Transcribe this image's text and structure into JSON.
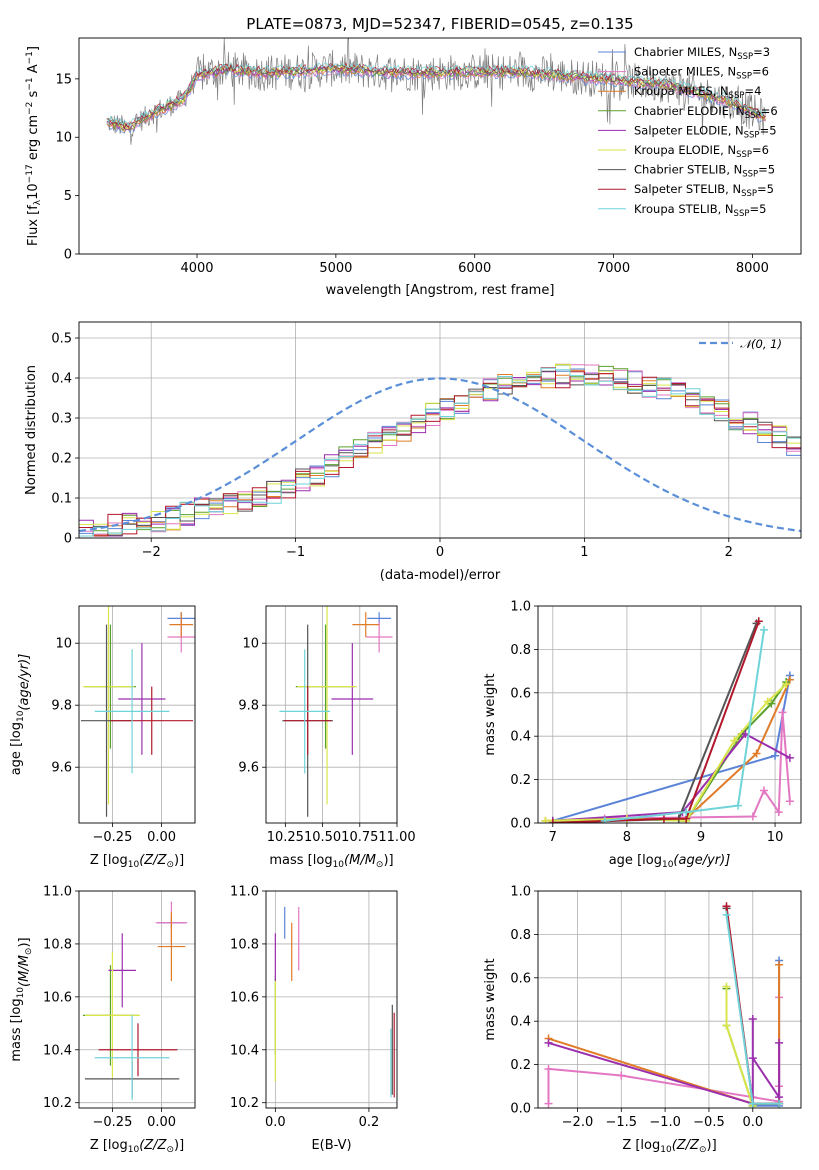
{
  "colors": {
    "Chabrier MILES": "#5b84d8",
    "Salpeter MILES": "#e377c2",
    "Kroupa MILES": "#e07b28",
    "Chabrier ELODIE": "#5aa02c",
    "Salpeter ELODIE": "#9b2fae",
    "Kroupa ELODIE": "#d9e54a",
    "Chabrier STELIB": "#555555",
    "Salpeter STELIB": "#b2182b",
    "Kroupa STELIB": "#6fd3d8",
    "data": "#7f7f7f"
  },
  "chart_data": [
    {
      "id": "spectrum",
      "type": "line",
      "title": "PLATE=0873, MJD=52347, FIBERID=0545, z=0.135",
      "xlabel": "wavelength [Angstrom, rest frame]",
      "ylabel": "Flux [f",
      "ylabel_sub": "λ",
      "ylabel_mid": "10",
      "ylabel_sup1": "−17",
      "ylabel_rest": " erg cm",
      "ylabel_sup2": "−2",
      "ylabel_s": " s",
      "ylabel_sup3": "−1",
      "ylabel_a": " A",
      "ylabel_sup4": "−1",
      "ylabel_end": "]",
      "xlim": [
        3150,
        8350
      ],
      "ylim": [
        0,
        18.5
      ],
      "xticks": [
        4000,
        5000,
        6000,
        7000,
        8000
      ],
      "yticks": [
        0,
        5,
        10,
        15
      ],
      "continuum": [
        [
          3350,
          11.3
        ],
        [
          3500,
          10.8
        ],
        [
          3700,
          12.2
        ],
        [
          3900,
          13.2
        ],
        [
          4000,
          15.3
        ],
        [
          4200,
          15.8
        ],
        [
          4500,
          15.5
        ],
        [
          4800,
          15.7
        ],
        [
          5000,
          15.9
        ],
        [
          5300,
          15.6
        ],
        [
          5600,
          15.5
        ],
        [
          6000,
          15.6
        ],
        [
          6300,
          15.6
        ],
        [
          6600,
          15.3
        ],
        [
          7000,
          14.9
        ],
        [
          7400,
          14.5
        ],
        [
          7800,
          13.2
        ],
        [
          8100,
          11.6
        ]
      ],
      "legend": [
        {
          "label": "Chabrier MILES, N",
          "sub": "SSP",
          "n": "=3",
          "key": "Chabrier MILES"
        },
        {
          "label": "Salpeter MILES, N",
          "sub": "SSP",
          "n": "=6",
          "key": "Salpeter MILES"
        },
        {
          "label": "Kroupa MILES, N",
          "sub": "SSP",
          "n": "=4",
          "key": "Kroupa MILES"
        },
        {
          "label": "Chabrier ELODIE, N",
          "sub": "SSP",
          "n": "=6",
          "key": "Chabrier ELODIE"
        },
        {
          "label": "Salpeter ELODIE, N",
          "sub": "SSP",
          "n": "=5",
          "key": "Salpeter ELODIE"
        },
        {
          "label": "Kroupa ELODIE, N",
          "sub": "SSP",
          "n": "=6",
          "key": "Kroupa ELODIE"
        },
        {
          "label": "Chabrier STELIB, N",
          "sub": "SSP",
          "n": "=5",
          "key": "Chabrier STELIB"
        },
        {
          "label": "Salpeter STELIB, N",
          "sub": "SSP",
          "n": "=5",
          "key": "Salpeter STELIB"
        },
        {
          "label": "Kroupa STELIB, N",
          "sub": "SSP",
          "n": "=5",
          "key": "Kroupa STELIB"
        }
      ]
    },
    {
      "id": "residuals",
      "type": "histogram",
      "xlabel": "(data-model)/error",
      "ylabel": "Normed distribution",
      "xlim": [
        -2.5,
        2.5
      ],
      "ylim": [
        0,
        0.54
      ],
      "xticks": [
        -2,
        -1,
        0,
        1,
        2
      ],
      "yticks": [
        0.0,
        0.1,
        0.2,
        0.3,
        0.4,
        0.5
      ],
      "bin_width": 0.1,
      "legend_label": "𝒩(0, 1)",
      "base_values": [
        0.02,
        0.025,
        0.03,
        0.035,
        0.04,
        0.045,
        0.05,
        0.06,
        0.07,
        0.08,
        0.085,
        0.095,
        0.105,
        0.115,
        0.13,
        0.145,
        0.16,
        0.18,
        0.2,
        0.22,
        0.24,
        0.255,
        0.27,
        0.29,
        0.31,
        0.325,
        0.34,
        0.355,
        0.37,
        0.38,
        0.39,
        0.395,
        0.4,
        0.405,
        0.41,
        0.41,
        0.405,
        0.4,
        0.39,
        0.38,
        0.37,
        0.36,
        0.345,
        0.33,
        0.315,
        0.3,
        0.285,
        0.265,
        0.25,
        0.23,
        0.21,
        0.19,
        0.17,
        0.155,
        0.14,
        0.125,
        0.11,
        0.1,
        0.09,
        0.08,
        0.07,
        0.06,
        0.055,
        0.05,
        0.045,
        0.04,
        0.035,
        0.03,
        0.025,
        0.02,
        0.02,
        0.02,
        0.02,
        0.02,
        0.02,
        0.02,
        0.02,
        0.02,
        0.02,
        0.02
      ]
    },
    {
      "id": "age-vs-Z",
      "type": "errorbar",
      "xlabel": "Z [log",
      "xlabel_sub": "10",
      "xlabel_rest": "(Z/Z",
      "xlabel_sub2": "⊙",
      "xlabel_end": ")]",
      "ylabel": "age  [log",
      "ylabel_sub": "10",
      "ylabel_rest": "(age/yr)]",
      "xlim": [
        -0.42,
        0.17
      ],
      "ylim": [
        9.42,
        10.12
      ],
      "xticks": [
        -0.25,
        0.0
      ],
      "xtick_labels": [
        "−0.25",
        "0.00"
      ],
      "yticks": [
        9.6,
        9.8,
        10.0
      ],
      "points": [
        {
          "key": "Chabrier MILES",
          "x": 0.1,
          "y": 10.08,
          "xerr": 0.07,
          "yerr": 0.02
        },
        {
          "key": "Salpeter MILES",
          "x": 0.1,
          "y": 10.02,
          "xerr": 0.07,
          "yerr": 0.05
        },
        {
          "key": "Kroupa MILES",
          "x": 0.1,
          "y": 10.06,
          "xerr": 0.06,
          "yerr": 0.04
        },
        {
          "key": "Chabrier ELODIE",
          "x": -0.26,
          "y": 9.86,
          "xerr": 0.13,
          "yerr": 0.2
        },
        {
          "key": "Salpeter ELODIE",
          "x": -0.1,
          "y": 9.82,
          "xerr": 0.12,
          "yerr": 0.18
        },
        {
          "key": "Kroupa ELODIE",
          "x": -0.27,
          "y": 9.86,
          "xerr": 0.13,
          "yerr": 0.38
        },
        {
          "key": "Chabrier STELIB",
          "x": -0.28,
          "y": 9.75,
          "xerr": 0.13,
          "yerr": 0.31
        },
        {
          "key": "Salpeter STELIB",
          "x": -0.05,
          "y": 9.75,
          "xerr": 0.21,
          "yerr": 0.11
        },
        {
          "key": "Kroupa STELIB",
          "x": -0.15,
          "y": 9.78,
          "xerr": 0.19,
          "yerr": 0.2
        }
      ]
    },
    {
      "id": "age-vs-mass",
      "type": "errorbar",
      "xlabel": "mass [log",
      "xlabel_sub": "10",
      "xlabel_rest": "(M/M",
      "xlabel_sub2": "⊙",
      "xlabel_end": ")]",
      "xlim": [
        10.12,
        11.0
      ],
      "ylim": [
        9.42,
        10.12
      ],
      "xticks": [
        10.25,
        10.5,
        10.75,
        11.0
      ],
      "xtick_labels": [
        "10.25",
        "10.50",
        "10.75",
        "11.00"
      ],
      "yticks": [
        9.6,
        9.8,
        10.0
      ],
      "points": [
        {
          "key": "Chabrier MILES",
          "x": 10.88,
          "y": 10.08,
          "xerr": 0.08,
          "yerr": 0.02
        },
        {
          "key": "Salpeter MILES",
          "x": 10.88,
          "y": 10.02,
          "xerr": 0.09,
          "yerr": 0.05
        },
        {
          "key": "Kroupa MILES",
          "x": 10.79,
          "y": 10.06,
          "xerr": 0.09,
          "yerr": 0.04
        },
        {
          "key": "Chabrier ELODIE",
          "x": 10.52,
          "y": 9.86,
          "xerr": 0.2,
          "yerr": 0.2
        },
        {
          "key": "Salpeter ELODIE",
          "x": 10.7,
          "y": 9.82,
          "xerr": 0.14,
          "yerr": 0.18
        },
        {
          "key": "Kroupa ELODIE",
          "x": 10.53,
          "y": 9.86,
          "xerr": 0.2,
          "yerr": 0.38
        },
        {
          "key": "Chabrier STELIB",
          "x": 10.4,
          "y": 9.75,
          "xerr": 0.17,
          "yerr": 0.31
        },
        {
          "key": "Salpeter STELIB",
          "x": 10.4,
          "y": 9.75,
          "xerr": 0.16,
          "yerr": 0.11
        },
        {
          "key": "Kroupa STELIB",
          "x": 10.38,
          "y": 9.78,
          "xerr": 0.17,
          "yerr": 0.2
        }
      ]
    },
    {
      "id": "weight-vs-age",
      "type": "line",
      "xlabel": "age  [log",
      "xlabel_sub": "10",
      "xlabel_rest": "(age/yr)]",
      "ylabel": "mass weight",
      "xlim": [
        6.8,
        10.35
      ],
      "ylim": [
        0,
        1.0
      ],
      "xticks": [
        7,
        8,
        9,
        10
      ],
      "yticks": [
        0.0,
        0.2,
        0.4,
        0.6,
        0.8,
        1.0
      ],
      "ytick_labels": [
        "0.0",
        "0.2",
        "0.4",
        "0.6",
        "0.8",
        "1.0"
      ],
      "series": [
        {
          "key": "Chabrier MILES",
          "x": [
            7.0,
            10.0,
            10.2
          ],
          "y": [
            0.01,
            0.31,
            0.68
          ]
        },
        {
          "key": "Salpeter MILES",
          "x": [
            7.7,
            9.7,
            9.85,
            10.05,
            10.1,
            10.2
          ],
          "y": [
            0.02,
            0.03,
            0.15,
            0.05,
            0.51,
            0.1
          ]
        },
        {
          "key": "Kroupa MILES",
          "x": [
            6.9,
            8.8,
            9.75,
            10.2
          ],
          "y": [
            0.01,
            0.02,
            0.32,
            0.66
          ]
        },
        {
          "key": "Chabrier ELODIE",
          "x": [
            7.0,
            8.0,
            8.8,
            9.55,
            9.95,
            10.15
          ],
          "y": [
            0.01,
            0.02,
            0.01,
            0.41,
            0.55,
            0.65
          ]
        },
        {
          "key": "Salpeter ELODIE",
          "x": [
            7.0,
            8.75,
            9.6,
            10.2
          ],
          "y": [
            0.01,
            0.05,
            0.41,
            0.3
          ]
        },
        {
          "key": "Kroupa ELODIE",
          "x": [
            6.9,
            8.0,
            8.8,
            9.45,
            9.9,
            10.15
          ],
          "y": [
            0.01,
            0.02,
            0.01,
            0.38,
            0.56,
            0.64
          ]
        },
        {
          "key": "Chabrier STELIB",
          "x": [
            7.0,
            8.7,
            9.75
          ],
          "y": [
            0.0,
            0.02,
            0.92
          ]
        },
        {
          "key": "Salpeter STELIB",
          "x": [
            7.0,
            8.5,
            8.8,
            9.78
          ],
          "y": [
            0.0,
            0.02,
            0.02,
            0.93
          ]
        },
        {
          "key": "Kroupa STELIB",
          "x": [
            7.7,
            8.8,
            9.5,
            9.85
          ],
          "y": [
            0.01,
            0.05,
            0.08,
            0.89
          ]
        }
      ]
    },
    {
      "id": "mass-vs-Z",
      "type": "errorbar",
      "xlabel": "Z [log",
      "xlabel_sub": "10",
      "xlabel_rest": "(Z/Z",
      "xlabel_sub2": "⊙",
      "xlabel_end": ")]",
      "ylabel": "mass [log",
      "ylabel_sub": "10",
      "ylabel_rest": "(M/M",
      "ylabel_sub2": "⊙",
      "ylabel_end": ")]",
      "xlim": [
        -0.42,
        0.17
      ],
      "ylim": [
        10.18,
        11.0
      ],
      "xticks": [
        -0.25,
        0.0
      ],
      "xtick_labels": [
        "−0.25",
        "0.00"
      ],
      "yticks": [
        10.2,
        10.4,
        10.6,
        10.8,
        11.0
      ],
      "ytick_labels": [
        "10.2",
        "10.4",
        "10.6",
        "10.8",
        "11.0"
      ],
      "points": [
        {
          "key": "Chabrier MILES",
          "x": 0.05,
          "y": 10.88,
          "xerr": 0.07,
          "yerr": 0.02
        },
        {
          "key": "Salpeter MILES",
          "x": 0.05,
          "y": 10.88,
          "xerr": 0.08,
          "yerr": 0.08
        },
        {
          "key": "Kroupa MILES",
          "x": 0.05,
          "y": 10.79,
          "xerr": 0.07,
          "yerr": 0.13
        },
        {
          "key": "Chabrier ELODIE",
          "x": -0.26,
          "y": 10.53,
          "xerr": 0.14,
          "yerr": 0.19
        },
        {
          "key": "Salpeter ELODIE",
          "x": -0.2,
          "y": 10.7,
          "xerr": 0.07,
          "yerr": 0.14
        },
        {
          "key": "Kroupa ELODIE",
          "x": -0.25,
          "y": 10.53,
          "xerr": 0.14,
          "yerr": 0.24
        },
        {
          "key": "Chabrier STELIB",
          "x": -0.15,
          "y": 10.29,
          "xerr": 0.24,
          "yerr": 0.07
        },
        {
          "key": "Salpeter STELIB",
          "x": -0.12,
          "y": 10.4,
          "xerr": 0.2,
          "yerr": 0.1
        },
        {
          "key": "Kroupa STELIB",
          "x": -0.15,
          "y": 10.37,
          "xerr": 0.19,
          "yerr": 0.16
        }
      ]
    },
    {
      "id": "mass-vs-EBV",
      "type": "errorbar",
      "xlabel": "E(B-V)",
      "xlim": [
        -0.02,
        0.26
      ],
      "ylim": [
        10.18,
        11.0
      ],
      "xticks": [
        0.0,
        0.2
      ],
      "xtick_labels": [
        "0.0",
        "0.2"
      ],
      "yticks": [
        10.2,
        10.4,
        10.6,
        10.8,
        11.0
      ],
      "ytick_labels": [
        "10.2",
        "10.4",
        "10.6",
        "10.8",
        "11.0"
      ],
      "points": [
        {
          "key": "Chabrier MILES",
          "x": 0.02,
          "y": 10.88,
          "xerr": 0.0,
          "yerr": 0.06
        },
        {
          "key": "Salpeter MILES",
          "x": 0.05,
          "y": 10.82,
          "xerr": 0.0,
          "yerr": 0.12
        },
        {
          "key": "Kroupa MILES",
          "x": 0.035,
          "y": 10.77,
          "xerr": 0.0,
          "yerr": 0.11
        },
        {
          "key": "Chabrier ELODIE",
          "x": 0.0,
          "y": 10.53,
          "xerr": 0.0,
          "yerr": 0.15
        },
        {
          "key": "Salpeter ELODIE",
          "x": 0.0,
          "y": 10.75,
          "xerr": 0.0,
          "yerr": 0.09
        },
        {
          "key": "Kroupa ELODIE",
          "x": 0.0,
          "y": 10.47,
          "xerr": 0.0,
          "yerr": 0.19
        },
        {
          "key": "Chabrier STELIB",
          "x": 0.25,
          "y": 10.4,
          "xerr": 0.0,
          "yerr": 0.17
        },
        {
          "key": "Salpeter STELIB",
          "x": 0.254,
          "y": 10.38,
          "xerr": 0.0,
          "yerr": 0.16
        },
        {
          "key": "Kroupa STELIB",
          "x": 0.247,
          "y": 10.35,
          "xerr": 0.0,
          "yerr": 0.13
        }
      ]
    },
    {
      "id": "weight-vs-Z",
      "type": "line",
      "xlabel": "Z [log",
      "xlabel_sub": "10",
      "xlabel_rest": "(Z/Z",
      "xlabel_sub2": "⊙",
      "xlabel_end": ")]",
      "ylabel": "mass weight",
      "xlim": [
        -2.45,
        0.55
      ],
      "ylim": [
        0,
        1.0
      ],
      "xticks": [
        -2.0,
        -1.5,
        -1.0,
        -0.5,
        0.0
      ],
      "xtick_labels": [
        "−2.0",
        "−1.5",
        "−1.0",
        "−0.5",
        "0.0"
      ],
      "yticks": [
        0.0,
        0.2,
        0.4,
        0.6,
        0.8,
        1.0
      ],
      "ytick_labels": [
        "0.0",
        "0.2",
        "0.4",
        "0.6",
        "0.8",
        "1.0"
      ],
      "series": [
        {
          "key": "Chabrier MILES",
          "x": [
            0.0,
            0.3,
            0.3
          ],
          "y": [
            0.01,
            0.01,
            0.68
          ]
        },
        {
          "key": "Salpeter MILES",
          "x": [
            -2.33,
            -2.33,
            -1.5,
            0.0,
            0.3,
            0.3,
            0.3
          ],
          "y": [
            0.02,
            0.18,
            0.15,
            0.05,
            0.03,
            0.51,
            0.1
          ]
        },
        {
          "key": "Kroupa MILES",
          "x": [
            -2.33,
            0.0,
            0.3,
            0.3
          ],
          "y": [
            0.32,
            0.02,
            0.02,
            0.66
          ]
        },
        {
          "key": "Chabrier ELODIE",
          "x": [
            -0.3,
            -0.3,
            0.0,
            0.0
          ],
          "y": [
            0.55,
            0.38,
            0.01,
            0.02
          ]
        },
        {
          "key": "Salpeter ELODIE",
          "x": [
            -2.33,
            0.0,
            0.0,
            0.0,
            0.3,
            0.3
          ],
          "y": [
            0.3,
            0.02,
            0.41,
            0.23,
            0.05,
            0.3
          ]
        },
        {
          "key": "Kroupa ELODIE",
          "x": [
            -0.3,
            -0.3,
            0.0,
            0.0
          ],
          "y": [
            0.56,
            0.38,
            0.01,
            0.02
          ]
        },
        {
          "key": "Chabrier STELIB",
          "x": [
            -0.3,
            0.0,
            0.3
          ],
          "y": [
            0.92,
            0.02,
            0.02
          ]
        },
        {
          "key": "Salpeter STELIB",
          "x": [
            -0.3,
            0.0,
            0.3
          ],
          "y": [
            0.93,
            0.02,
            0.02
          ]
        },
        {
          "key": "Kroupa STELIB",
          "x": [
            -0.3,
            0.0,
            0.3
          ],
          "y": [
            0.89,
            0.02,
            0.02
          ]
        }
      ]
    }
  ]
}
